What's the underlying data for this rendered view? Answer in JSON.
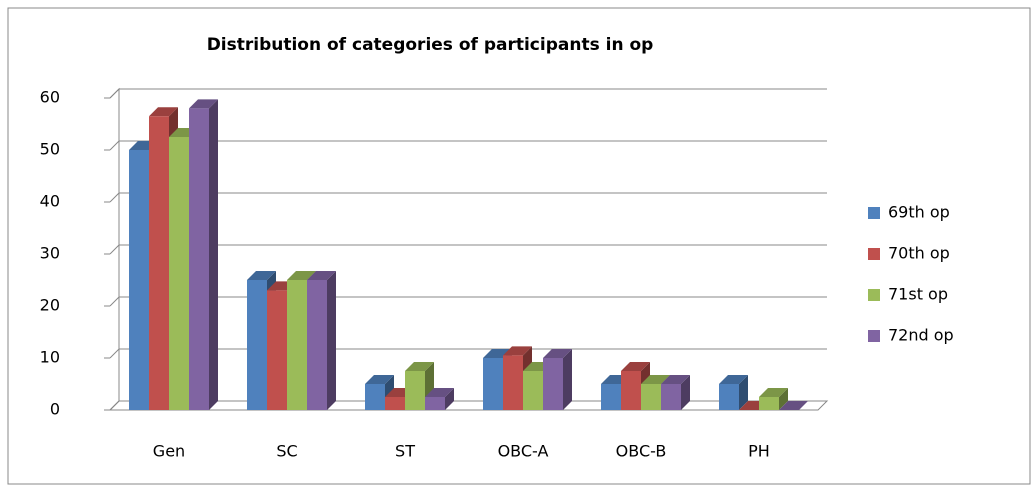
{
  "chart_data": {
    "type": "bar3d",
    "title": "Distribution of categories of participants in op",
    "categories": [
      "Gen",
      "SC",
      "ST",
      "OBC-A",
      "OBC-B",
      "PH"
    ],
    "series": [
      {
        "name": "69th op",
        "color": "#4f81bd",
        "values": [
          50,
          25,
          5,
          10,
          5,
          5
        ]
      },
      {
        "name": "70th op",
        "color": "#c0504d",
        "values": [
          56.5,
          23,
          2.5,
          10.5,
          7.5,
          0
        ]
      },
      {
        "name": "71st op",
        "color": "#9bbb59",
        "values": [
          52.5,
          25,
          7.5,
          7.5,
          5,
          2.5
        ]
      },
      {
        "name": "72nd op",
        "color": "#8064a2",
        "values": [
          58,
          25,
          2.5,
          10,
          5,
          0
        ]
      }
    ],
    "ylim": [
      0,
      60
    ],
    "yticks": [
      0,
      10,
      20,
      30,
      40,
      50,
      60
    ],
    "grid": true,
    "legend": "right"
  }
}
